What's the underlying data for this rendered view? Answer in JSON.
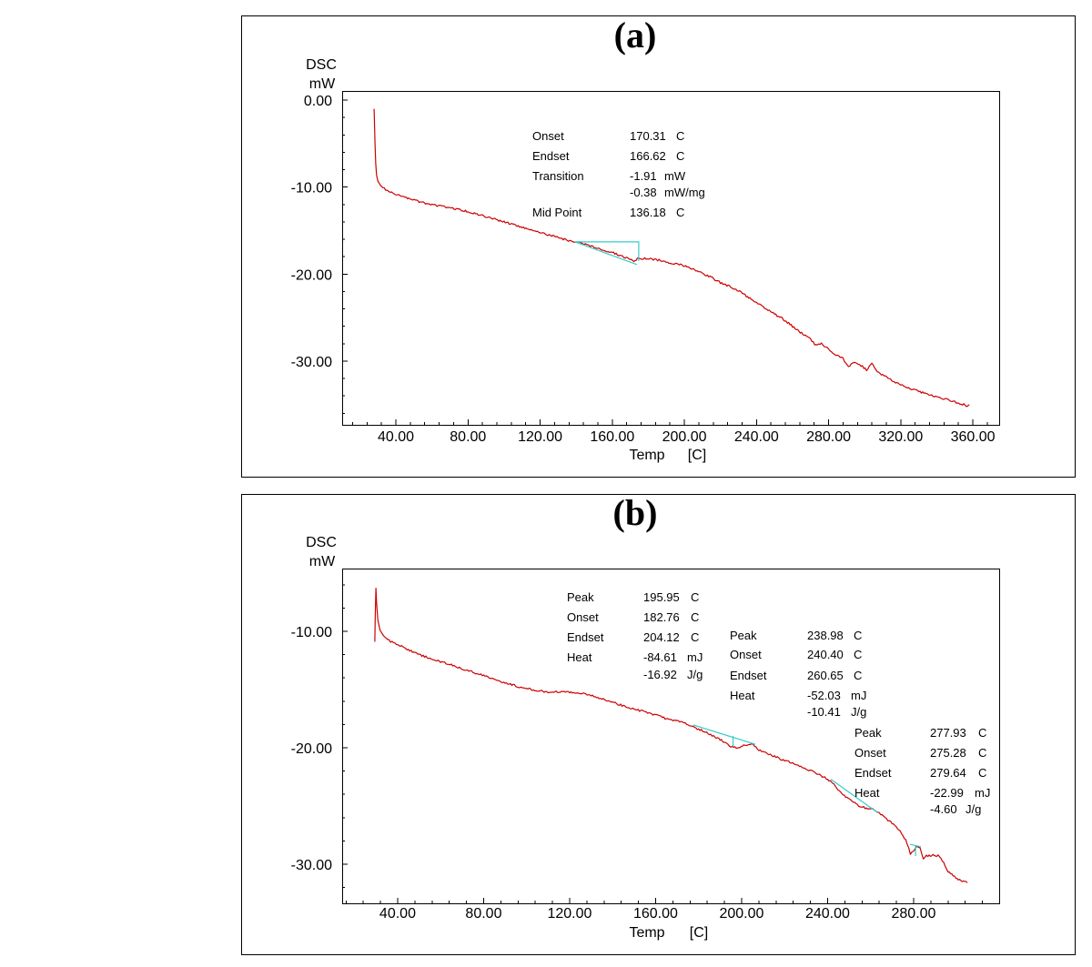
{
  "chart_data": [
    {
      "type": "line",
      "title": "(a)",
      "ylabel": "DSC",
      "yunit": "mW",
      "xlabel": "Temp",
      "xunit": "[C]",
      "xlim": [
        10.2,
        374.6
      ],
      "ylim": [
        -37.32,
        1.05
      ],
      "xticks": [
        40,
        80,
        120,
        160,
        200,
        240,
        280,
        320,
        360
      ],
      "xtick_labels": [
        "40.00",
        "80.00",
        "120.00",
        "160.00",
        "200.00",
        "240.00",
        "280.00",
        "320.00",
        "360.00"
      ],
      "yticks": [
        0,
        -10,
        -20,
        -30
      ],
      "ytick_labels": [
        "0.00",
        "-10.00",
        "-20.00",
        "-30.00"
      ],
      "series_color": "#cc0000",
      "baseline_color": "#33cccc",
      "series": [
        {
          "x": [
            27.9,
            28.1,
            28.4,
            28.8,
            29.3,
            30.0,
            31.5,
            33.5,
            36,
            40,
            45,
            50,
            55,
            60,
            65,
            70,
            75,
            80,
            85,
            90,
            95,
            100,
            105,
            110,
            115,
            120,
            125,
            130,
            135,
            140,
            145,
            150,
            155,
            160,
            165,
            170,
            172,
            174,
            178,
            182,
            186,
            190,
            195,
            200,
            205,
            210,
            215,
            220,
            225,
            230,
            235,
            240,
            245,
            250,
            255,
            260,
            265,
            270,
            273,
            276,
            280,
            284,
            288,
            291,
            294,
            298,
            301,
            304,
            307,
            310,
            315,
            320,
            325,
            330,
            335,
            340,
            345,
            350,
            355,
            357,
            358
          ],
          "y": [
            -1.0,
            -2.5,
            -5.0,
            -7.3,
            -8.6,
            -9.3,
            -9.8,
            -10.2,
            -10.5,
            -10.8,
            -11.2,
            -11.5,
            -11.8,
            -12.0,
            -12.2,
            -12.4,
            -12.6,
            -12.8,
            -13.1,
            -13.4,
            -13.7,
            -14.0,
            -14.3,
            -14.6,
            -14.9,
            -15.2,
            -15.5,
            -15.8,
            -16.1,
            -16.3,
            -16.6,
            -16.9,
            -17.2,
            -17.5,
            -17.9,
            -18.3,
            -18.6,
            -18.2,
            -18.2,
            -18.3,
            -18.4,
            -18.6,
            -18.8,
            -19.0,
            -19.4,
            -19.9,
            -20.4,
            -21.0,
            -21.4,
            -21.9,
            -22.6,
            -23.3,
            -23.9,
            -24.6,
            -25.2,
            -26.0,
            -26.8,
            -27.5,
            -28.2,
            -28.0,
            -28.6,
            -29.3,
            -29.7,
            -30.6,
            -30.1,
            -30.5,
            -31.0,
            -30.3,
            -31.2,
            -31.6,
            -32.2,
            -32.7,
            -33.1,
            -33.5,
            -33.8,
            -34.1,
            -34.4,
            -34.7,
            -35.0,
            -35.2,
            -35.0
          ]
        }
      ],
      "baselines": [
        {
          "x": [
            139.4,
            174.7,
            174.7
          ],
          "y": [
            -16.3,
            -16.3,
            -18.5
          ]
        },
        {
          "x": [
            139.4,
            173.7
          ],
          "y": [
            -16.3,
            -18.9
          ]
        }
      ],
      "annotations": [
        {
          "rows": [
            {
              "label": "Onset",
              "value": "170.31",
              "unit": "C"
            },
            {
              "label": "Endset",
              "value": "166.62",
              "unit": "C"
            },
            {
              "label": "Transition",
              "value": "-1.91",
              "unit": "mW"
            },
            {
              "label": "",
              "value": "-0.38",
              "unit": "mW/mg"
            },
            {
              "label": "Mid Point",
              "value": "136.18",
              "unit": "C"
            }
          ]
        }
      ]
    },
    {
      "type": "line",
      "title": "(b)",
      "ylabel": "DSC",
      "yunit": "mW",
      "xlabel": "Temp",
      "xunit": "[C]",
      "xlim": [
        14.2,
        319.8
      ],
      "ylim": [
        -33.36,
        -4.61
      ],
      "xticks": [
        40,
        80,
        120,
        160,
        200,
        240,
        280
      ],
      "xtick_labels": [
        "40.00",
        "80.00",
        "120.00",
        "160.00",
        "200.00",
        "240.00",
        "280.00"
      ],
      "yticks": [
        -10,
        -20,
        -30
      ],
      "ytick_labels": [
        "-10.00",
        "-20.00",
        "-30.00"
      ],
      "series_color": "#cc0000",
      "baseline_color": "#33cccc",
      "series": [
        {
          "x": [
            29.4,
            29.6,
            29.9,
            30.2,
            30.8,
            31.8,
            33.5,
            36,
            40,
            45,
            50,
            55,
            60,
            65,
            70,
            75,
            80,
            85,
            90,
            95,
            100,
            105,
            110,
            115,
            120,
            125,
            130,
            135,
            140,
            145,
            150,
            155,
            160,
            165,
            170,
            175,
            180,
            185,
            190,
            195,
            198,
            201,
            204,
            206,
            208,
            212,
            216,
            220,
            225,
            230,
            235,
            240,
            243,
            246,
            249,
            252,
            255,
            258,
            261,
            264,
            268,
            272,
            275,
            277,
            278.5,
            280,
            281.5,
            283,
            284.5,
            286,
            289,
            292,
            294,
            296,
            299,
            302,
            305
          ],
          "y": [
            -10.9,
            -8.5,
            -6.3,
            -7.5,
            -9.0,
            -9.9,
            -10.4,
            -10.8,
            -11.1,
            -11.6,
            -12.0,
            -12.3,
            -12.6,
            -12.9,
            -13.2,
            -13.5,
            -13.8,
            -14.1,
            -14.4,
            -14.7,
            -14.9,
            -15.1,
            -15.2,
            -15.2,
            -15.2,
            -15.3,
            -15.5,
            -15.8,
            -16.1,
            -16.4,
            -16.7,
            -16.9,
            -17.2,
            -17.5,
            -17.7,
            -18.0,
            -18.4,
            -18.8,
            -19.3,
            -19.9,
            -20.0,
            -19.8,
            -19.7,
            -19.8,
            -20.2,
            -20.5,
            -20.8,
            -21.1,
            -21.4,
            -21.8,
            -22.2,
            -22.7,
            -23.2,
            -23.8,
            -24.3,
            -24.7,
            -25.0,
            -25.2,
            -25.3,
            -25.6,
            -26.2,
            -26.8,
            -27.5,
            -28.2,
            -29.2,
            -28.8,
            -28.5,
            -28.6,
            -29.6,
            -29.3,
            -29.2,
            -29.3,
            -29.9,
            -30.6,
            -31.1,
            -31.4,
            -31.6
          ]
        }
      ],
      "baselines": [
        {
          "x": [
            177.6,
            206.4
          ],
          "y": [
            -18.05,
            -19.7
          ]
        },
        {
          "x": [
            196.0,
            196.0
          ],
          "y": [
            -19.0,
            -19.9
          ]
        },
        {
          "x": [
            241.5,
            263.5
          ],
          "y": [
            -22.7,
            -25.6
          ]
        },
        {
          "x": [
            278.3,
            283.4
          ],
          "y": [
            -28.3,
            -28.5
          ]
        },
        {
          "x": [
            280.9,
            280.9
          ],
          "y": [
            -28.4,
            -29.3
          ]
        }
      ],
      "annotations": [
        {
          "rows": [
            {
              "label": "Peak",
              "value": "195.95",
              "unit": "C"
            },
            {
              "label": "Onset",
              "value": "182.76",
              "unit": "C"
            },
            {
              "label": "Endset",
              "value": "204.12",
              "unit": "C"
            },
            {
              "label": "Heat",
              "value": "-84.61",
              "unit": "mJ"
            },
            {
              "label": "",
              "value": "-16.92",
              "unit": "J/g"
            }
          ]
        },
        {
          "rows": [
            {
              "label": "Peak",
              "value": "238.98",
              "unit": "C"
            },
            {
              "label": "Onset",
              "value": "240.40",
              "unit": "C"
            },
            {
              "label": "Endset",
              "value": "260.65",
              "unit": "C"
            },
            {
              "label": "Heat",
              "value": "-52.03",
              "unit": "mJ"
            },
            {
              "label": "",
              "value": "-10.41",
              "unit": "J/g"
            }
          ]
        },
        {
          "rows": [
            {
              "label": "Peak",
              "value": "277.93",
              "unit": "C"
            },
            {
              "label": "Onset",
              "value": "275.28",
              "unit": "C"
            },
            {
              "label": "Endset",
              "value": "279.64",
              "unit": "C"
            },
            {
              "label": "Heat",
              "value": "-22.99",
              "unit": "mJ"
            },
            {
              "label": "",
              "value": "-4.60",
              "unit": "J/g"
            }
          ]
        }
      ]
    }
  ]
}
